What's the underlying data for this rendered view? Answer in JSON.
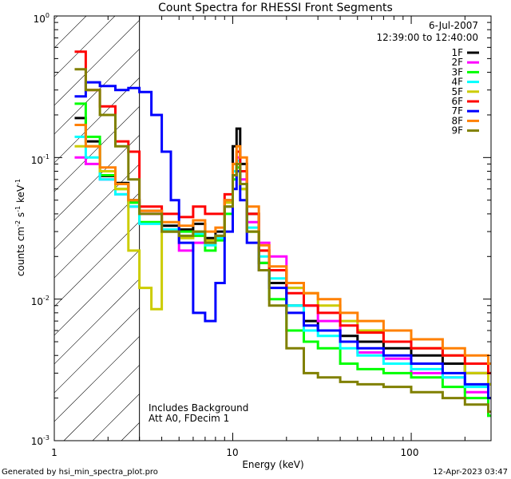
{
  "chart_data": {
    "type": "line",
    "title": "Count Spectra for RHESSI Front Segments",
    "xlabel": "Energy (keV)",
    "ylabel_main": "counts cm",
    "ylabel_sup1": "-2",
    "ylabel_mid": " s",
    "ylabel_sup2": "-1",
    "ylabel_end": " keV",
    "ylabel_sup3": "-1",
    "xscale": "log",
    "yscale": "log",
    "xlim": [
      1,
      280
    ],
    "ylim": [
      0.001,
      1.0
    ],
    "x_tick_labels": [
      "1",
      "10",
      "100"
    ],
    "y_tick_labels": [
      {
        "base": "10",
        "exp": "0"
      },
      {
        "base": "10",
        "exp": "-1"
      },
      {
        "base": "10",
        "exp": "-2"
      },
      {
        "base": "10",
        "exp": "-3"
      }
    ],
    "date": "6-Jul-2007",
    "time_range": "12:39:00 to 12:40:00",
    "annotation_line1": "Includes Background",
    "annotation_line2": "Att A0, FDecim 1",
    "attenuator_shade_upper_keV": 3.0,
    "footer_left": "Generated by hsi_min_spectra_plot.pro",
    "footer_right": "12-Apr-2023 03:47",
    "series": [
      {
        "name": "1F",
        "color": "#000000",
        "points": [
          [
            1.3,
            0.19
          ],
          [
            1.5,
            0.13
          ],
          [
            1.8,
            0.074
          ],
          [
            2.2,
            0.066
          ],
          [
            2.6,
            0.05
          ],
          [
            3.0,
            0.042
          ],
          [
            4.0,
            0.033
          ],
          [
            5.0,
            0.031
          ],
          [
            6.0,
            0.034
          ],
          [
            7.0,
            0.027
          ],
          [
            8.0,
            0.03
          ],
          [
            9.0,
            0.05
          ],
          [
            10.0,
            0.12
          ],
          [
            10.5,
            0.16
          ],
          [
            11.0,
            0.09
          ],
          [
            12.0,
            0.04
          ],
          [
            14.0,
            0.018
          ],
          [
            16.0,
            0.013
          ],
          [
            20.0,
            0.009
          ],
          [
            25.0,
            0.007
          ],
          [
            30.0,
            0.006
          ],
          [
            40.0,
            0.0055
          ],
          [
            50.0,
            0.005
          ],
          [
            70.0,
            0.0045
          ],
          [
            100.0,
            0.004
          ],
          [
            150.0,
            0.0035
          ],
          [
            200.0,
            0.003
          ],
          [
            270.0,
            0.0025
          ]
        ]
      },
      {
        "name": "2F",
        "color": "#ff00ff",
        "points": [
          [
            1.3,
            0.1
          ],
          [
            1.5,
            0.09
          ],
          [
            1.8,
            0.07
          ],
          [
            2.2,
            0.055
          ],
          [
            2.6,
            0.045
          ],
          [
            3.0,
            0.04
          ],
          [
            4.0,
            0.03
          ],
          [
            5.0,
            0.022
          ],
          [
            6.0,
            0.025
          ],
          [
            7.0,
            0.026
          ],
          [
            8.0,
            0.028
          ],
          [
            9.0,
            0.045
          ],
          [
            10.0,
            0.08
          ],
          [
            10.5,
            0.1
          ],
          [
            11.0,
            0.07
          ],
          [
            12.0,
            0.035
          ],
          [
            14.0,
            0.025
          ],
          [
            16.0,
            0.02
          ],
          [
            20.0,
            0.012
          ],
          [
            25.0,
            0.009
          ],
          [
            30.0,
            0.007
          ],
          [
            40.0,
            0.005
          ],
          [
            50.0,
            0.0042
          ],
          [
            70.0,
            0.0038
          ],
          [
            100.0,
            0.003
          ],
          [
            150.0,
            0.0028
          ],
          [
            200.0,
            0.0022
          ],
          [
            270.0,
            0.0015
          ]
        ]
      },
      {
        "name": "3F",
        "color": "#00ff00",
        "points": [
          [
            1.3,
            0.24
          ],
          [
            1.5,
            0.14
          ],
          [
            1.8,
            0.075
          ],
          [
            2.2,
            0.06
          ],
          [
            2.6,
            0.048
          ],
          [
            3.0,
            0.035
          ],
          [
            4.0,
            0.03
          ],
          [
            5.0,
            0.03
          ],
          [
            6.0,
            0.028
          ],
          [
            7.0,
            0.022
          ],
          [
            8.0,
            0.026
          ],
          [
            9.0,
            0.04
          ],
          [
            10.0,
            0.07
          ],
          [
            10.5,
            0.085
          ],
          [
            11.0,
            0.06
          ],
          [
            12.0,
            0.03
          ],
          [
            14.0,
            0.018
          ],
          [
            16.0,
            0.01
          ],
          [
            20.0,
            0.006
          ],
          [
            25.0,
            0.005
          ],
          [
            30.0,
            0.0045
          ],
          [
            40.0,
            0.0035
          ],
          [
            50.0,
            0.0032
          ],
          [
            70.0,
            0.003
          ],
          [
            100.0,
            0.0028
          ],
          [
            150.0,
            0.0024
          ],
          [
            200.0,
            0.002
          ],
          [
            270.0,
            0.0015
          ]
        ]
      },
      {
        "name": "4F",
        "color": "#00ffff",
        "points": [
          [
            1.3,
            0.14
          ],
          [
            1.5,
            0.1
          ],
          [
            1.8,
            0.07
          ],
          [
            2.2,
            0.055
          ],
          [
            2.6,
            0.045
          ],
          [
            3.0,
            0.034
          ],
          [
            4.0,
            0.031
          ],
          [
            5.0,
            0.028
          ],
          [
            6.0,
            0.029
          ],
          [
            7.0,
            0.024
          ],
          [
            8.0,
            0.027
          ],
          [
            9.0,
            0.045
          ],
          [
            10.0,
            0.08
          ],
          [
            10.5,
            0.095
          ],
          [
            11.0,
            0.065
          ],
          [
            12.0,
            0.032
          ],
          [
            14.0,
            0.02
          ],
          [
            16.0,
            0.014
          ],
          [
            20.0,
            0.009
          ],
          [
            25.0,
            0.006
          ],
          [
            30.0,
            0.0055
          ],
          [
            40.0,
            0.0045
          ],
          [
            50.0,
            0.004
          ],
          [
            70.0,
            0.0035
          ],
          [
            100.0,
            0.0032
          ],
          [
            150.0,
            0.0028
          ],
          [
            200.0,
            0.0024
          ],
          [
            270.0,
            0.002
          ]
        ]
      },
      {
        "name": "5F",
        "color": "#cccc00",
        "points": [
          [
            1.3,
            0.12
          ],
          [
            1.5,
            0.12
          ],
          [
            1.8,
            0.08
          ],
          [
            2.2,
            0.06
          ],
          [
            2.6,
            0.022
          ],
          [
            3.0,
            0.012
          ],
          [
            3.5,
            0.0085
          ],
          [
            4.0,
            0.03
          ],
          [
            5.0,
            0.027
          ],
          [
            6.0,
            0.03
          ],
          [
            7.0,
            0.026
          ],
          [
            8.0,
            0.028
          ],
          [
            9.0,
            0.048
          ],
          [
            10.0,
            0.075
          ],
          [
            10.5,
            0.09
          ],
          [
            11.0,
            0.06
          ],
          [
            12.0,
            0.03
          ],
          [
            14.0,
            0.022
          ],
          [
            16.0,
            0.016
          ],
          [
            20.0,
            0.012
          ],
          [
            25.0,
            0.011
          ],
          [
            30.0,
            0.009
          ],
          [
            40.0,
            0.007
          ],
          [
            50.0,
            0.006
          ],
          [
            70.0,
            0.005
          ],
          [
            100.0,
            0.0045
          ],
          [
            150.0,
            0.004
          ],
          [
            200.0,
            0.003
          ],
          [
            270.0,
            0.0025
          ]
        ]
      },
      {
        "name": "6F",
        "color": "#ff0000",
        "points": [
          [
            1.3,
            0.56
          ],
          [
            1.5,
            0.3
          ],
          [
            1.8,
            0.23
          ],
          [
            2.2,
            0.13
          ],
          [
            2.6,
            0.11
          ],
          [
            3.0,
            0.045
          ],
          [
            4.0,
            0.04
          ],
          [
            5.0,
            0.038
          ],
          [
            6.0,
            0.045
          ],
          [
            7.0,
            0.04
          ],
          [
            8.0,
            0.04
          ],
          [
            9.0,
            0.055
          ],
          [
            10.0,
            0.09
          ],
          [
            10.5,
            0.11
          ],
          [
            11.0,
            0.08
          ],
          [
            12.0,
            0.04
          ],
          [
            14.0,
            0.022
          ],
          [
            16.0,
            0.016
          ],
          [
            20.0,
            0.011
          ],
          [
            25.0,
            0.009
          ],
          [
            30.0,
            0.008
          ],
          [
            40.0,
            0.0065
          ],
          [
            50.0,
            0.0058
          ],
          [
            70.0,
            0.005
          ],
          [
            100.0,
            0.0045
          ],
          [
            150.0,
            0.004
          ],
          [
            200.0,
            0.0035
          ],
          [
            270.0,
            0.003
          ]
        ]
      },
      {
        "name": "7F",
        "color": "#0000ff",
        "points": [
          [
            1.3,
            0.27
          ],
          [
            1.5,
            0.34
          ],
          [
            1.8,
            0.32
          ],
          [
            2.2,
            0.3
          ],
          [
            2.6,
            0.31
          ],
          [
            3.0,
            0.29
          ],
          [
            3.5,
            0.2
          ],
          [
            4.0,
            0.11
          ],
          [
            4.5,
            0.05
          ],
          [
            5.0,
            0.025
          ],
          [
            6.0,
            0.008
          ],
          [
            7.0,
            0.007
          ],
          [
            8.0,
            0.013
          ],
          [
            9.0,
            0.03
          ],
          [
            10.0,
            0.06
          ],
          [
            10.5,
            0.08
          ],
          [
            11.0,
            0.05
          ],
          [
            12.0,
            0.025
          ],
          [
            14.0,
            0.016
          ],
          [
            16.0,
            0.012
          ],
          [
            20.0,
            0.008
          ],
          [
            25.0,
            0.0065
          ],
          [
            30.0,
            0.006
          ],
          [
            40.0,
            0.005
          ],
          [
            50.0,
            0.0045
          ],
          [
            70.0,
            0.004
          ],
          [
            100.0,
            0.0035
          ],
          [
            150.0,
            0.003
          ],
          [
            200.0,
            0.0025
          ],
          [
            270.0,
            0.002
          ]
        ]
      },
      {
        "name": "8F",
        "color": "#ff8000",
        "points": [
          [
            1.3,
            0.17
          ],
          [
            1.5,
            0.12
          ],
          [
            1.8,
            0.085
          ],
          [
            2.2,
            0.065
          ],
          [
            2.6,
            0.05
          ],
          [
            3.0,
            0.042
          ],
          [
            4.0,
            0.035
          ],
          [
            5.0,
            0.033
          ],
          [
            6.0,
            0.036
          ],
          [
            7.0,
            0.03
          ],
          [
            8.0,
            0.032
          ],
          [
            9.0,
            0.05
          ],
          [
            10.0,
            0.09
          ],
          [
            10.5,
            0.12
          ],
          [
            11.0,
            0.1
          ],
          [
            12.0,
            0.045
          ],
          [
            14.0,
            0.024
          ],
          [
            16.0,
            0.017
          ],
          [
            20.0,
            0.013
          ],
          [
            25.0,
            0.011
          ],
          [
            30.0,
            0.01
          ],
          [
            40.0,
            0.008
          ],
          [
            50.0,
            0.007
          ],
          [
            70.0,
            0.006
          ],
          [
            100.0,
            0.0052
          ],
          [
            150.0,
            0.0045
          ],
          [
            200.0,
            0.004
          ],
          [
            270.0,
            0.0035
          ]
        ]
      },
      {
        "name": "9F",
        "color": "#808000",
        "points": [
          [
            1.3,
            0.42
          ],
          [
            1.5,
            0.3
          ],
          [
            1.8,
            0.2
          ],
          [
            2.2,
            0.12
          ],
          [
            2.6,
            0.07
          ],
          [
            3.0,
            0.04
          ],
          [
            4.0,
            0.03
          ],
          [
            5.0,
            0.028
          ],
          [
            6.0,
            0.03
          ],
          [
            7.0,
            0.025
          ],
          [
            8.0,
            0.028
          ],
          [
            9.0,
            0.045
          ],
          [
            10.0,
            0.075
          ],
          [
            10.5,
            0.09
          ],
          [
            11.0,
            0.065
          ],
          [
            12.0,
            0.03
          ],
          [
            14.0,
            0.016
          ],
          [
            16.0,
            0.009
          ],
          [
            20.0,
            0.0045
          ],
          [
            25.0,
            0.003
          ],
          [
            30.0,
            0.0028
          ],
          [
            40.0,
            0.0026
          ],
          [
            50.0,
            0.0025
          ],
          [
            70.0,
            0.0024
          ],
          [
            100.0,
            0.0022
          ],
          [
            150.0,
            0.002
          ],
          [
            200.0,
            0.0018
          ],
          [
            270.0,
            0.0016
          ]
        ]
      }
    ]
  }
}
